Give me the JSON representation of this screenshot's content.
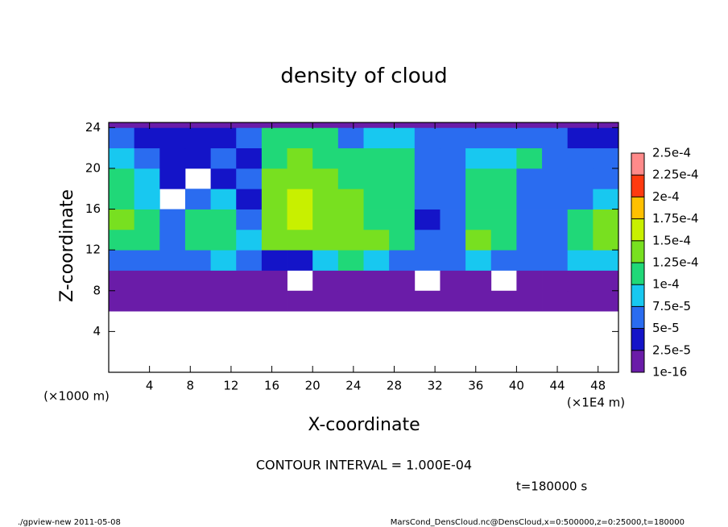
{
  "chart_data": {
    "type": "heatmap",
    "title": "density of cloud",
    "xlabel": "X-coordinate",
    "ylabel": "Z-coordinate",
    "x_units": "(×1E4 m)",
    "y_units": "(×1000 m)",
    "xlim": [
      0,
      50
    ],
    "ylim": [
      0,
      24.5
    ],
    "xticks": [
      4,
      8,
      12,
      16,
      20,
      24,
      28,
      32,
      36,
      40,
      44,
      48
    ],
    "yticks": [
      4,
      8,
      12,
      16,
      20,
      24
    ],
    "x": [
      0,
      2.5,
      5,
      7.5,
      10,
      12.5,
      15,
      17.5,
      20,
      22.5,
      25,
      27.5,
      30,
      32.5,
      35,
      37.5,
      40,
      42.5,
      45,
      47.5,
      50
    ],
    "y": [
      0,
      2,
      4,
      6,
      8,
      10,
      12,
      14,
      16,
      18,
      20,
      22,
      24,
      24.5
    ],
    "values": [
      [
        null,
        null,
        null,
        null,
        null,
        null,
        null,
        null,
        null,
        null,
        null,
        null,
        null,
        null,
        null,
        null,
        null,
        null,
        null,
        null
      ],
      [
        null,
        null,
        null,
        null,
        null,
        null,
        null,
        null,
        null,
        null,
        null,
        null,
        null,
        null,
        null,
        null,
        null,
        null,
        null,
        null
      ],
      [
        null,
        null,
        null,
        null,
        null,
        null,
        null,
        null,
        null,
        null,
        null,
        null,
        null,
        null,
        null,
        null,
        null,
        null,
        null,
        null
      ],
      [
        1e-05,
        1e-05,
        1e-05,
        1e-05,
        1e-05,
        1e-05,
        1e-05,
        1e-05,
        1e-05,
        1e-05,
        1e-05,
        1e-05,
        1e-05,
        1e-05,
        1e-05,
        1e-05,
        1e-05,
        1e-05,
        1e-05,
        1e-05
      ],
      [
        2e-05,
        2e-05,
        1e-05,
        1e-05,
        2e-05,
        1e-05,
        1e-05,
        null,
        1e-05,
        1e-05,
        2e-05,
        1e-05,
        null,
        1e-05,
        1e-05,
        null,
        1e-05,
        1e-05,
        1e-05,
        2e-05
      ],
      [
        6e-05,
        7e-05,
        5e-05,
        6e-05,
        8e-05,
        6e-05,
        4e-05,
        3e-05,
        9e-05,
        0.00011,
        9e-05,
        7e-05,
        6e-05,
        5e-05,
        8e-05,
        7e-05,
        5e-05,
        6e-05,
        8e-05,
        9e-05
      ],
      [
        0.00012,
        0.0001,
        6e-05,
        0.00011,
        0.0001,
        8e-05,
        0.00013,
        0.00014,
        0.00014,
        0.00013,
        0.00013,
        0.00012,
        6e-05,
        5e-05,
        0.00013,
        0.00011,
        6e-05,
        7e-05,
        0.00011,
        0.00013
      ],
      [
        0.00013,
        0.00012,
        5e-05,
        0.0001,
        0.00012,
        6e-05,
        0.00014,
        0.00015,
        0.00014,
        0.00013,
        0.00012,
        0.00012,
        4e-05,
        6e-05,
        0.00012,
        0.00011,
        5e-05,
        6e-05,
        0.0001,
        0.00013
      ],
      [
        0.00012,
        9e-05,
        null,
        6e-05,
        8e-05,
        3e-05,
        0.00014,
        0.00015,
        0.00014,
        0.00013,
        0.00012,
        0.00012,
        5e-05,
        5e-05,
        0.00012,
        0.0001,
        5e-05,
        5e-05,
        6e-05,
        8e-05
      ],
      [
        0.00011,
        8e-05,
        4e-05,
        null,
        3e-05,
        5e-05,
        0.00013,
        0.00014,
        0.00013,
        0.00011,
        0.00012,
        0.00011,
        6e-05,
        6e-05,
        0.00011,
        0.0001,
        7e-05,
        6e-05,
        6e-05,
        7e-05
      ],
      [
        8e-05,
        6e-05,
        4e-05,
        3e-05,
        5e-05,
        4e-05,
        0.00012,
        0.00013,
        0.00012,
        0.0001,
        0.00011,
        0.0001,
        7e-05,
        7e-05,
        8e-05,
        9e-05,
        0.0001,
        7e-05,
        6e-05,
        5e-05
      ],
      [
        5e-05,
        4e-05,
        3e-05,
        3e-05,
        4e-05,
        5e-05,
        0.00011,
        0.00011,
        0.0001,
        7e-05,
        8e-05,
        8e-05,
        6e-05,
        5e-05,
        6e-05,
        6e-05,
        5e-05,
        5e-05,
        4e-05,
        4e-05
      ],
      [
        1e-05,
        1e-05,
        1e-05,
        1e-05,
        1e-05,
        1e-05,
        1e-05,
        1e-05,
        1e-05,
        1e-05,
        1e-05,
        1e-05,
        1e-05,
        1e-05,
        1e-05,
        1e-05,
        1e-05,
        1e-05,
        1e-05,
        1e-05
      ]
    ],
    "colorbar": {
      "levels": [
        {
          "value": 1e-16,
          "label": "1e-16"
        },
        {
          "value": 2.5e-05,
          "label": "2.5e-5"
        },
        {
          "value": 5e-05,
          "label": "5e-5"
        },
        {
          "value": 7.5e-05,
          "label": "7.5e-5"
        },
        {
          "value": 0.0001,
          "label": "1e-4"
        },
        {
          "value": 0.000125,
          "label": "1.25e-4"
        },
        {
          "value": 0.00015,
          "label": "1.5e-4"
        },
        {
          "value": 0.000175,
          "label": "1.75e-4"
        },
        {
          "value": 0.0002,
          "label": "2e-4"
        },
        {
          "value": 0.000225,
          "label": "2.25e-4"
        },
        {
          "value": 0.00025,
          "label": "2.5e-4"
        }
      ],
      "colors": [
        "#6a1ca8",
        "#1414c8",
        "#2a6cf0",
        "#18c8f0",
        "#20d878",
        "#78e020",
        "#c8f000",
        "#ffc000",
        "#ff3a10",
        "#ff8a8a"
      ]
    },
    "annotations": [
      "CONTOUR INTERVAL = 1.000E-04",
      "t=180000 s"
    ]
  },
  "footer": {
    "left": "./gpview-new  2011-05-08",
    "right": "MarsCond_DensCloud.nc@DensCloud,x=0:500000,z=0:25000,t=180000"
  }
}
